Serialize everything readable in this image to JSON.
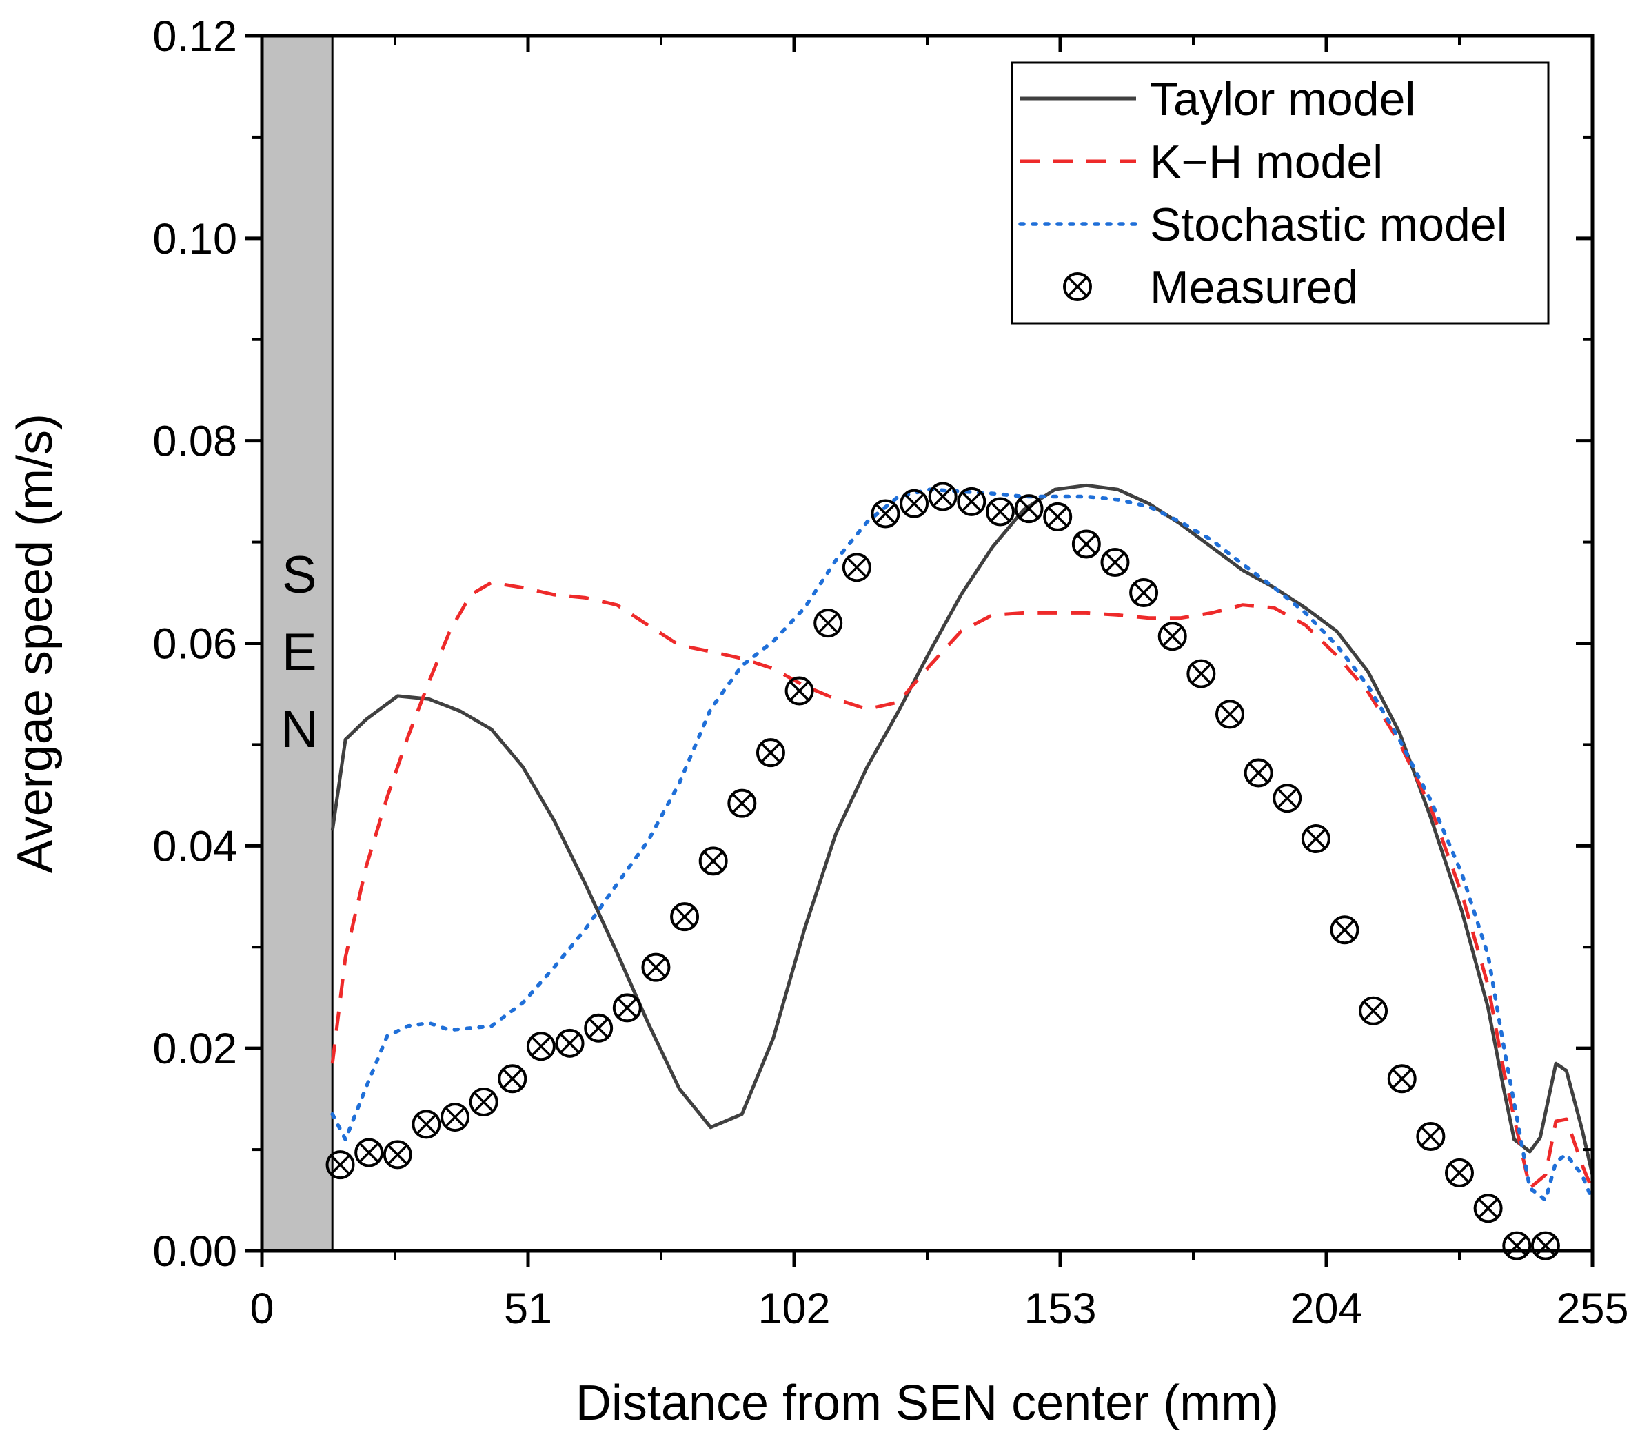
{
  "chart_data": {
    "type": "line",
    "title": "",
    "xlabel": "Distance from SEN center (mm)",
    "ylabel": "Avergae speed (m/s)",
    "xlim": [
      0,
      255
    ],
    "ylim": [
      0,
      0.12
    ],
    "xticks": [
      0,
      51,
      102,
      153,
      204,
      255
    ],
    "xtick_labels": [
      "0",
      "51",
      "102",
      "153",
      "204",
      "255"
    ],
    "yticks": [
      0,
      0.02,
      0.04,
      0.06,
      0.08,
      0.1,
      0.12
    ],
    "ytick_labels": [
      "0.00",
      "0.02",
      "0.04",
      "0.06",
      "0.08",
      "0.10",
      "0.12"
    ],
    "legend_position": "top-right",
    "sen_region": {
      "x_start": 0,
      "x_end": 13.5,
      "label": [
        "S",
        "E",
        "N"
      ],
      "color": "#c0c0c0"
    },
    "series": [
      {
        "name": "Taylor model",
        "style": "solid",
        "color": "#404040",
        "x": [
          13.5,
          16,
          20,
          26,
          32,
          38,
          44,
          50,
          56,
          62,
          68,
          74,
          80,
          86,
          92,
          98,
          104,
          110,
          116,
          122,
          128,
          134,
          140,
          146,
          152,
          158,
          164,
          170,
          176,
          182,
          188,
          194,
          200,
          206,
          212,
          218,
          224,
          230,
          235,
          238,
          240,
          243,
          245,
          248,
          250,
          253,
          255
        ],
        "values": [
          0.0415,
          0.0505,
          0.0525,
          0.0548,
          0.0545,
          0.0533,
          0.0515,
          0.0478,
          0.0425,
          0.0362,
          0.0295,
          0.0225,
          0.016,
          0.0122,
          0.0135,
          0.021,
          0.0318,
          0.0412,
          0.0478,
          0.0533,
          0.0592,
          0.0648,
          0.0695,
          0.0732,
          0.0752,
          0.0756,
          0.0752,
          0.0738,
          0.0718,
          0.0695,
          0.0672,
          0.0655,
          0.0635,
          0.0612,
          0.0572,
          0.0512,
          0.0428,
          0.0335,
          0.024,
          0.016,
          0.011,
          0.0098,
          0.0112,
          0.0185,
          0.0178,
          0.012,
          0.0075
        ]
      },
      {
        "name": "K−H model",
        "style": "dashed",
        "color": "#ee2a2a",
        "x": [
          13.5,
          16,
          20,
          24,
          28,
          32,
          36,
          40,
          44,
          50,
          56,
          62,
          68,
          74,
          80,
          86,
          92,
          98,
          104,
          110,
          116,
          122,
          128,
          134,
          140,
          146,
          152,
          158,
          164,
          170,
          176,
          182,
          188,
          194,
          200,
          206,
          212,
          218,
          224,
          230,
          235,
          238,
          241,
          243,
          246,
          248,
          250,
          253,
          255
        ],
        "values": [
          0.0185,
          0.029,
          0.038,
          0.0448,
          0.0508,
          0.0562,
          0.0612,
          0.0648,
          0.066,
          0.0655,
          0.0648,
          0.0645,
          0.0638,
          0.0618,
          0.0598,
          0.0592,
          0.0585,
          0.0575,
          0.0558,
          0.0545,
          0.0535,
          0.0542,
          0.0578,
          0.0612,
          0.0628,
          0.063,
          0.063,
          0.063,
          0.0628,
          0.0625,
          0.0625,
          0.063,
          0.0638,
          0.0635,
          0.0618,
          0.0588,
          0.0552,
          0.0502,
          0.0438,
          0.0352,
          0.0262,
          0.0178,
          0.0108,
          0.0062,
          0.0075,
          0.0128,
          0.013,
          0.0085,
          0.006
        ]
      },
      {
        "name": "Stochastic model",
        "style": "dotted",
        "color": "#1f6fd8",
        "x": [
          13.5,
          16,
          20,
          24,
          28,
          32,
          36,
          40,
          44,
          50,
          56,
          62,
          68,
          74,
          80,
          86,
          92,
          98,
          104,
          110,
          116,
          122,
          128,
          134,
          140,
          146,
          152,
          158,
          164,
          170,
          176,
          182,
          188,
          194,
          200,
          206,
          212,
          218,
          224,
          230,
          235,
          238,
          241,
          243,
          246,
          248,
          250,
          253,
          255
        ],
        "values": [
          0.0135,
          0.011,
          0.0162,
          0.0212,
          0.0222,
          0.0225,
          0.0218,
          0.022,
          0.0222,
          0.0245,
          0.028,
          0.0318,
          0.0362,
          0.0405,
          0.0462,
          0.0535,
          0.0578,
          0.0602,
          0.0635,
          0.0682,
          0.072,
          0.0745,
          0.0752,
          0.075,
          0.0748,
          0.0745,
          0.0745,
          0.0745,
          0.0742,
          0.0735,
          0.072,
          0.0702,
          0.0678,
          0.0655,
          0.063,
          0.0598,
          0.0558,
          0.0505,
          0.0445,
          0.0372,
          0.0292,
          0.0202,
          0.0118,
          0.0062,
          0.005,
          0.0088,
          0.0095,
          0.0075,
          0.005
        ]
      },
      {
        "name": "Measured",
        "style": "markers",
        "color": "#000000",
        "x": [
          15,
          20.5,
          26,
          31.5,
          37,
          42.5,
          48,
          53.5,
          59,
          64.5,
          70,
          75.5,
          81,
          86.5,
          92,
          97.5,
          103,
          108.5,
          114,
          119.5,
          125,
          130.5,
          136,
          141.5,
          147,
          152.5,
          158,
          163.5,
          169,
          174.5,
          180,
          185.5,
          191,
          196.5,
          202,
          207.5,
          213,
          218.5,
          224,
          229.5,
          235,
          240.5,
          246
        ],
        "values": [
          0.0085,
          0.0097,
          0.0095,
          0.0125,
          0.0132,
          0.0147,
          0.017,
          0.0202,
          0.0205,
          0.022,
          0.024,
          0.028,
          0.033,
          0.0385,
          0.0442,
          0.0492,
          0.0553,
          0.062,
          0.0675,
          0.0728,
          0.0738,
          0.0745,
          0.074,
          0.073,
          0.0733,
          0.0725,
          0.0698,
          0.068,
          0.065,
          0.0607,
          0.057,
          0.053,
          0.0472,
          0.0447,
          0.0407,
          0.0317,
          0.0237,
          0.017,
          0.0113,
          0.0077,
          0.0042,
          0.0005,
          0.0005
        ]
      }
    ]
  }
}
